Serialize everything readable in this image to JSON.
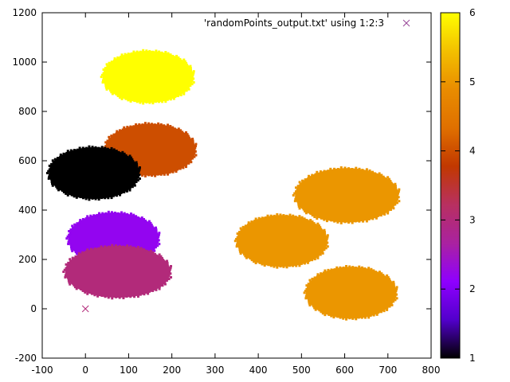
{
  "chart_data": {
    "type": "scatter",
    "title": "",
    "xlabel": "",
    "ylabel": "",
    "xlim": [
      -100,
      800
    ],
    "ylim": [
      -200,
      1200
    ],
    "x_ticks": [
      "-100",
      "0",
      "100",
      "200",
      "300",
      "400",
      "500",
      "600",
      "700",
      "800"
    ],
    "y_ticks": [
      "-200",
      "0",
      "200",
      "400",
      "600",
      "800",
      "1000",
      "1200"
    ],
    "legend": {
      "label": "'randomPoints_output.txt' using 1:2:3",
      "placement": "top-right",
      "marker": "x",
      "color": "#9a4a9a"
    },
    "colorbar": {
      "range": [
        1,
        6
      ],
      "ticks": [
        "1",
        "2",
        "3",
        "4",
        "5",
        "6"
      ],
      "palette": "gnuplot-rgbformulae-7-5-15",
      "stops": [
        "#000000",
        "#5200cc",
        "#8f00ff",
        "#aa22a0",
        "#b83060",
        "#c13800",
        "#e07000",
        "#e98c00",
        "#f3c000",
        "#ffff00"
      ]
    },
    "outlier_point": {
      "x": 0,
      "y": 0,
      "z": 3
    },
    "clusters": [
      {
        "cx": 145,
        "cy": 940,
        "rx": 105,
        "ry": 105,
        "z": 6.0
      },
      {
        "cx": 150,
        "cy": 645,
        "rx": 105,
        "ry": 105,
        "z": 4.0
      },
      {
        "cx": 20,
        "cy": 550,
        "rx": 105,
        "ry": 105,
        "z": 1.0
      },
      {
        "cx": 65,
        "cy": 285,
        "rx": 105,
        "ry": 105,
        "z": 2.2
      },
      {
        "cx": 75,
        "cy": 150,
        "rx": 122,
        "ry": 105,
        "z": 3.0
      },
      {
        "cx": 455,
        "cy": 275,
        "rx": 105,
        "ry": 105,
        "z": 5.0
      },
      {
        "cx": 605,
        "cy": 460,
        "rx": 120,
        "ry": 110,
        "z": 5.0
      },
      {
        "cx": 615,
        "cy": 65,
        "rx": 105,
        "ry": 105,
        "z": 5.0
      }
    ]
  }
}
